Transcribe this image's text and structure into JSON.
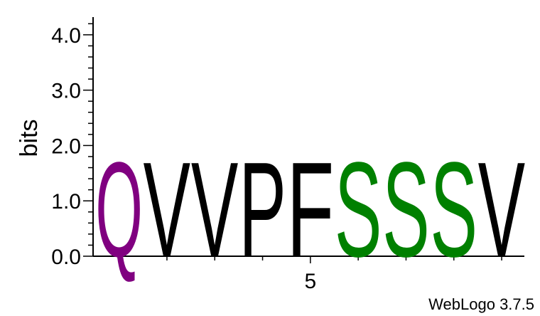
{
  "chart_data": {
    "type": "sequence-logo",
    "ylabel": "bits",
    "ylim": [
      0,
      4.32
    ],
    "y_ticks": [
      "0.0",
      "1.0",
      "2.0",
      "3.0",
      "4.0"
    ],
    "y_tick_values": [
      0,
      1,
      2,
      3,
      4
    ],
    "x_ticks": [
      "5"
    ],
    "x_tick_positions": [
      5
    ],
    "first_position": 1,
    "stacks": [
      {
        "position": 1,
        "letter": "Q",
        "bits": 1.76,
        "color": "#800080"
      },
      {
        "position": 2,
        "letter": "V",
        "bits": 1.76,
        "color": "#000000"
      },
      {
        "position": 3,
        "letter": "V",
        "bits": 1.76,
        "color": "#000000"
      },
      {
        "position": 4,
        "letter": "P",
        "bits": 1.76,
        "color": "#000000"
      },
      {
        "position": 5,
        "letter": "F",
        "bits": 1.76,
        "color": "#000000"
      },
      {
        "position": 6,
        "letter": "S",
        "bits": 1.76,
        "color": "#008000"
      },
      {
        "position": 7,
        "letter": "S",
        "bits": 1.76,
        "color": "#008000"
      },
      {
        "position": 8,
        "letter": "S",
        "bits": 1.76,
        "color": "#008000"
      },
      {
        "position": 9,
        "letter": "V",
        "bits": 1.76,
        "color": "#000000"
      }
    ]
  },
  "footer": {
    "credit": "WebLogo 3.7.5"
  }
}
